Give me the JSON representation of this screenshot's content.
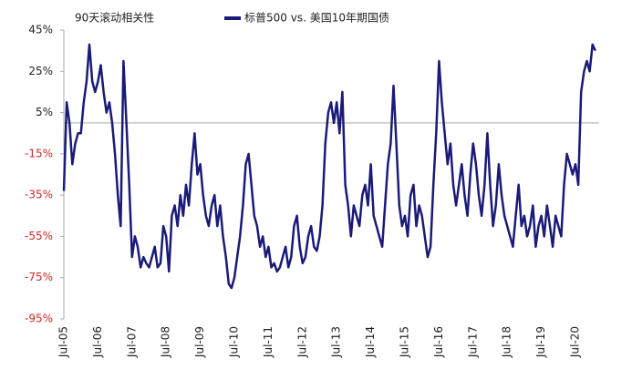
{
  "chart_data": {
    "type": "line",
    "annotation": "90天滚动相关性",
    "categories": [
      "Jul-05",
      null,
      null,
      null,
      null,
      null,
      null,
      null,
      null,
      null,
      null,
      null,
      "Jul-06",
      null,
      null,
      null,
      null,
      null,
      null,
      null,
      null,
      null,
      null,
      null,
      "Jul-07",
      null,
      null,
      null,
      null,
      null,
      null,
      null,
      null,
      null,
      null,
      null,
      "Jul-08",
      null,
      null,
      null,
      null,
      null,
      null,
      null,
      null,
      null,
      null,
      null,
      "Jul-09",
      null,
      null,
      null,
      null,
      null,
      null,
      null,
      null,
      null,
      null,
      null,
      "Jul-10",
      null,
      null,
      null,
      null,
      null,
      null,
      null,
      null,
      null,
      null,
      null,
      "Jul-11",
      null,
      null,
      null,
      null,
      null,
      null,
      null,
      null,
      null,
      null,
      null,
      "Jul-12",
      null,
      null,
      null,
      null,
      null,
      null,
      null,
      null,
      null,
      null,
      null,
      "Jul-13",
      null,
      null,
      null,
      null,
      null,
      null,
      null,
      null,
      null,
      null,
      null,
      "Jul-14",
      null,
      null,
      null,
      null,
      null,
      null,
      null,
      null,
      null,
      null,
      null,
      "Jul-15",
      null,
      null,
      null,
      null,
      null,
      null,
      null,
      null,
      null,
      null,
      null,
      "Jul-16",
      null,
      null,
      null,
      null,
      null,
      null,
      null,
      null,
      null,
      null,
      null,
      "Jul-17",
      null,
      null,
      null,
      null,
      null,
      null,
      null,
      null,
      null,
      null,
      null,
      "Jul-18",
      null,
      null,
      null,
      null,
      null,
      null,
      null,
      null,
      null,
      null,
      null,
      "Jul-19",
      null,
      null,
      null,
      null,
      null,
      null,
      null,
      null,
      null,
      null,
      null,
      "Jul-20",
      null,
      null,
      null,
      null,
      null,
      null,
      null
    ],
    "series": [
      {
        "name": "标普500 vs. 美国10年期国债",
        "color": "#1a1a78",
        "values": [
          -33,
          10,
          0,
          -20,
          -10,
          -5,
          -5,
          10,
          20,
          38,
          20,
          15,
          20,
          28,
          15,
          5,
          10,
          0,
          -15,
          -35,
          -50,
          30,
          0,
          -30,
          -65,
          -55,
          -60,
          -70,
          -65,
          -68,
          -70,
          -65,
          -60,
          -70,
          -68,
          -50,
          -55,
          -72,
          -45,
          -40,
          -50,
          -35,
          -45,
          -30,
          -40,
          -20,
          -5,
          -25,
          -20,
          -35,
          -45,
          -50,
          -40,
          -35,
          -50,
          -40,
          -55,
          -65,
          -78,
          -80,
          -75,
          -65,
          -55,
          -40,
          -20,
          -15,
          -30,
          -45,
          -50,
          -60,
          -55,
          -65,
          -60,
          -70,
          -68,
          -72,
          -70,
          -65,
          -60,
          -70,
          -65,
          -50,
          -45,
          -60,
          -68,
          -65,
          -55,
          -50,
          -60,
          -62,
          -55,
          -40,
          -10,
          5,
          10,
          0,
          10,
          -5,
          15,
          -30,
          -40,
          -55,
          -40,
          -45,
          -50,
          -35,
          -30,
          -40,
          -20,
          -45,
          -50,
          -55,
          -60,
          -40,
          -20,
          -10,
          18,
          -10,
          -40,
          -50,
          -45,
          -55,
          -35,
          -30,
          -50,
          -40,
          -45,
          -55,
          -65,
          -60,
          -30,
          -5,
          30,
          10,
          -5,
          -20,
          -10,
          -30,
          -40,
          -30,
          -20,
          -35,
          -45,
          -25,
          -10,
          -20,
          -35,
          -45,
          -30,
          -5,
          -30,
          -50,
          -40,
          -20,
          -35,
          -45,
          -50,
          -55,
          -60,
          -45,
          -30,
          -50,
          -45,
          -55,
          -50,
          -40,
          -60,
          -50,
          -45,
          -55,
          -40,
          -50,
          -60,
          -45,
          -50,
          -55,
          -30,
          -15,
          -20,
          -25,
          -20,
          -30,
          15,
          25,
          30,
          25,
          38,
          35
        ]
      }
    ],
    "ylim": [
      -95,
      45
    ],
    "yticks": [
      {
        "value": -95,
        "label": "-95%"
      },
      {
        "value": -75,
        "label": "-75%"
      },
      {
        "value": -55,
        "label": "-55%"
      },
      {
        "value": -35,
        "label": "-35%"
      },
      {
        "value": -15,
        "label": "-15%"
      },
      {
        "value": 5,
        "label": "5%"
      },
      {
        "value": 25,
        "label": "25%"
      },
      {
        "value": 45,
        "label": "45%"
      }
    ]
  }
}
